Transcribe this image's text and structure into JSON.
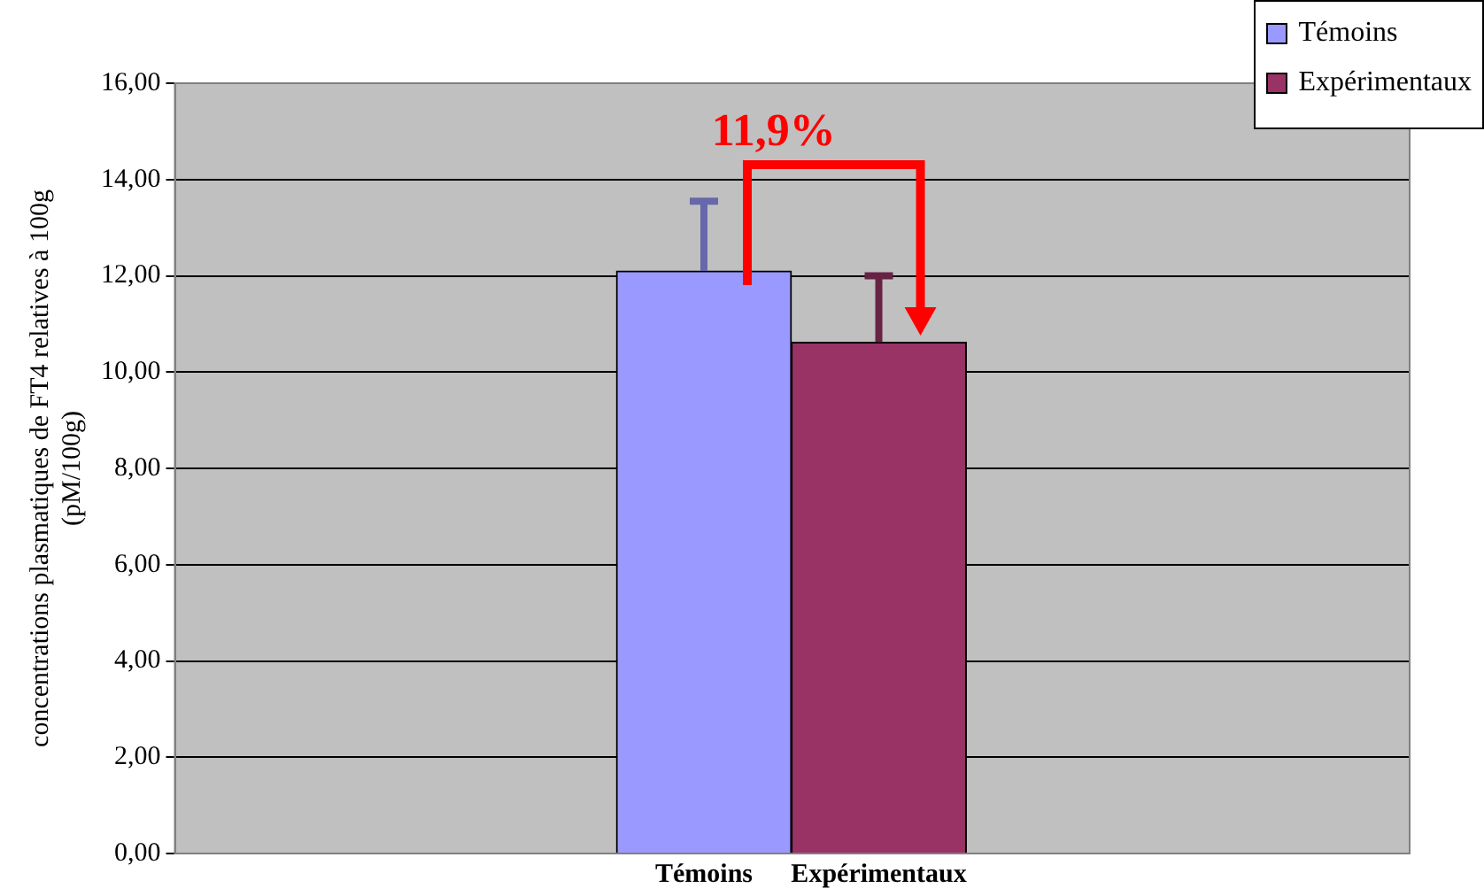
{
  "chart_data": {
    "type": "bar",
    "categories": [
      "Témoins",
      "Expérimentaux"
    ],
    "series": [
      {
        "name": "Témoins",
        "color": "#9999ff",
        "values": [
          12.1,
          null
        ],
        "errors": [
          [
            12.1,
            13.55
          ],
          null
        ]
      },
      {
        "name": "Expérimentaux",
        "color": "#993366",
        "values": [
          null,
          10.62
        ],
        "errors": [
          null,
          [
            10.62,
            12.0
          ]
        ]
      }
    ],
    "ylabel": "concentrations plasmatiques de FT4 relatives à 100g\n(pM/100g)",
    "ylim": [
      0,
      16
    ],
    "yticks": [
      {
        "value": 0,
        "label": "0,00"
      },
      {
        "value": 2,
        "label": "2,00"
      },
      {
        "value": 4,
        "label": "4,00"
      },
      {
        "value": 6,
        "label": "6,00"
      },
      {
        "value": 8,
        "label": "8,00"
      },
      {
        "value": 10,
        "label": "10,00"
      },
      {
        "value": 12,
        "label": "12,00"
      },
      {
        "value": 14,
        "label": "14,00"
      },
      {
        "value": 16,
        "label": "16,00"
      }
    ],
    "annotations": [
      "11,9%"
    ],
    "grid": "y",
    "legend": "top right"
  }
}
